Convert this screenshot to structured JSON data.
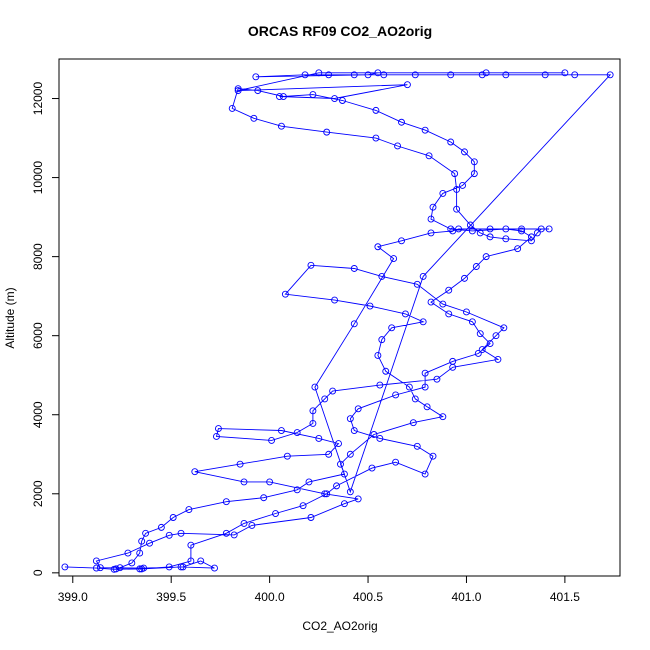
{
  "chart_data": {
    "type": "line",
    "title": "ORCAS RF09 CO2_AO2orig",
    "xlabel": "CO2_AO2orig",
    "ylabel": "Altitude (m)",
    "xlim": [
      398.93,
      401.78
    ],
    "ylim": [
      -80,
      13000
    ],
    "x_ticks": [
      "399.0",
      "399.5",
      "400.0",
      "400.5",
      "401.0",
      "401.5"
    ],
    "y_ticks": [
      "0",
      "2000",
      "4000",
      "6000",
      "8000",
      "10000",
      "12000"
    ],
    "grid": false,
    "series": [
      {
        "color": "#0000ff",
        "marker": "open-circle",
        "points": [
          [
            398.96,
            150
          ],
          [
            399.12,
            120
          ],
          [
            399.21,
            90
          ],
          [
            399.35,
            100
          ],
          [
            399.55,
            150
          ],
          [
            399.72,
            120
          ],
          [
            399.65,
            300
          ],
          [
            399.56,
            150
          ],
          [
            399.36,
            120
          ],
          [
            399.14,
            130
          ],
          [
            399.12,
            300
          ],
          [
            399.28,
            500
          ],
          [
            399.39,
            750
          ],
          [
            399.49,
            950
          ],
          [
            399.55,
            1000
          ],
          [
            399.82,
            960
          ],
          [
            399.91,
            1200
          ],
          [
            400.21,
            1400
          ],
          [
            400.38,
            1750
          ],
          [
            400.45,
            1870
          ],
          [
            400.28,
            2000
          ],
          [
            400.0,
            2300
          ],
          [
            399.87,
            2300
          ],
          [
            399.62,
            2560
          ],
          [
            399.85,
            2750
          ],
          [
            400.09,
            2950
          ],
          [
            400.3,
            3000
          ],
          [
            400.35,
            3270
          ],
          [
            400.25,
            3400
          ],
          [
            400.06,
            3600
          ],
          [
            399.74,
            3650
          ],
          [
            399.73,
            3450
          ],
          [
            400.01,
            3350
          ],
          [
            400.14,
            3550
          ],
          [
            400.22,
            3780
          ],
          [
            400.22,
            4100
          ],
          [
            400.28,
            4400
          ],
          [
            400.32,
            4600
          ],
          [
            400.56,
            4750
          ],
          [
            400.85,
            4900
          ],
          [
            400.93,
            5200
          ],
          [
            401.16,
            5400
          ],
          [
            401.08,
            5650
          ],
          [
            401.15,
            6000
          ],
          [
            401.19,
            6200
          ],
          [
            401.0,
            6600
          ],
          [
            400.88,
            6800
          ],
          [
            400.75,
            7300
          ],
          [
            400.57,
            7500
          ],
          [
            400.43,
            7700
          ],
          [
            400.21,
            7780
          ],
          [
            400.08,
            7050
          ],
          [
            400.33,
            6900
          ],
          [
            400.51,
            6750
          ],
          [
            400.69,
            6550
          ],
          [
            400.78,
            6350
          ],
          [
            400.62,
            6200
          ],
          [
            400.57,
            5900
          ],
          [
            400.55,
            5500
          ],
          [
            400.59,
            5100
          ],
          [
            400.71,
            4700
          ],
          [
            400.74,
            4400
          ],
          [
            400.8,
            4200
          ],
          [
            400.88,
            3950
          ],
          [
            400.73,
            3800
          ],
          [
            400.53,
            3500
          ],
          [
            400.41,
            3000
          ],
          [
            400.36,
            2750
          ],
          [
            400.38,
            2500
          ],
          [
            400.2,
            2300
          ],
          [
            400.14,
            2100
          ],
          [
            399.97,
            1900
          ],
          [
            399.78,
            1800
          ],
          [
            399.59,
            1600
          ],
          [
            399.51,
            1400
          ],
          [
            399.45,
            1150
          ],
          [
            399.37,
            1000
          ],
          [
            399.35,
            800
          ],
          [
            399.34,
            500
          ],
          [
            399.3,
            250
          ],
          [
            399.24,
            130
          ],
          [
            399.22,
            100
          ],
          [
            399.34,
            100
          ],
          [
            399.49,
            150
          ],
          [
            399.6,
            300
          ],
          [
            399.6,
            700
          ],
          [
            399.78,
            1000
          ],
          [
            399.87,
            1250
          ],
          [
            400.03,
            1500
          ],
          [
            400.17,
            1700
          ],
          [
            400.29,
            2000
          ],
          [
            400.34,
            2200
          ],
          [
            400.52,
            2650
          ],
          [
            400.64,
            2800
          ],
          [
            400.79,
            2500
          ],
          [
            400.83,
            2950
          ],
          [
            400.75,
            3200
          ],
          [
            400.56,
            3400
          ],
          [
            400.43,
            3600
          ],
          [
            400.41,
            3900
          ],
          [
            400.45,
            4150
          ],
          [
            400.64,
            4500
          ],
          [
            400.79,
            4700
          ],
          [
            400.79,
            5050
          ],
          [
            400.93,
            5350
          ],
          [
            401.06,
            5550
          ],
          [
            401.12,
            5800
          ],
          [
            401.07,
            6050
          ],
          [
            401.03,
            6350
          ],
          [
            400.91,
            6550
          ],
          [
            400.82,
            6850
          ],
          [
            400.91,
            7150
          ],
          [
            400.99,
            7450
          ],
          [
            401.05,
            7750
          ],
          [
            401.1,
            8000
          ],
          [
            401.26,
            8200
          ],
          [
            401.33,
            8500
          ],
          [
            401.28,
            8650
          ],
          [
            401.2,
            8700
          ],
          [
            401.03,
            8650
          ],
          [
            400.92,
            8700
          ],
          [
            400.82,
            8950
          ],
          [
            400.83,
            9250
          ],
          [
            400.88,
            9600
          ],
          [
            400.98,
            9800
          ],
          [
            401.04,
            10100
          ],
          [
            401.04,
            10400
          ],
          [
            400.99,
            10650
          ],
          [
            400.92,
            10900
          ],
          [
            400.79,
            11200
          ],
          [
            400.67,
            11400
          ],
          [
            400.54,
            11700
          ],
          [
            400.37,
            11950
          ],
          [
            400.22,
            12100
          ],
          [
            400.07,
            12050
          ],
          [
            399.94,
            12200
          ],
          [
            399.84,
            12250
          ],
          [
            399.81,
            11750
          ],
          [
            399.92,
            11500
          ],
          [
            400.06,
            11300
          ],
          [
            400.29,
            11150
          ],
          [
            400.54,
            11000
          ],
          [
            400.65,
            10800
          ],
          [
            400.81,
            10550
          ],
          [
            400.94,
            10100
          ],
          [
            400.95,
            9700
          ],
          [
            400.95,
            9200
          ],
          [
            401.02,
            8800
          ],
          [
            401.07,
            8600
          ],
          [
            401.12,
            8500
          ],
          [
            401.2,
            8450
          ],
          [
            401.33,
            8400
          ],
          [
            401.36,
            8600
          ],
          [
            401.38,
            8700
          ],
          [
            401.42,
            8700
          ],
          [
            401.28,
            8700
          ],
          [
            401.12,
            8700
          ],
          [
            400.96,
            8700
          ],
          [
            400.93,
            8650
          ],
          [
            400.82,
            8600
          ],
          [
            400.67,
            8400
          ],
          [
            400.55,
            8250
          ],
          [
            400.63,
            7950
          ],
          [
            400.43,
            6300
          ],
          [
            400.23,
            4700
          ],
          [
            400.41,
            2050
          ],
          [
            400.78,
            7500
          ],
          [
            401.73,
            12600
          ],
          [
            401.55,
            12600
          ],
          [
            401.4,
            12600
          ],
          [
            401.2,
            12600
          ],
          [
            401.08,
            12600
          ],
          [
            400.92,
            12600
          ],
          [
            400.74,
            12600
          ],
          [
            400.58,
            12600
          ],
          [
            400.43,
            12600
          ],
          [
            400.3,
            12600
          ],
          [
            400.18,
            12600
          ],
          [
            399.93,
            12550
          ],
          [
            400.5,
            12600
          ],
          [
            400.55,
            12650
          ],
          [
            401.1,
            12650
          ],
          [
            401.5,
            12650
          ],
          [
            400.25,
            12650
          ],
          [
            399.84,
            12200
          ],
          [
            400.7,
            12350
          ],
          [
            400.33,
            12000
          ],
          [
            400.05,
            12050
          ]
        ]
      }
    ]
  }
}
